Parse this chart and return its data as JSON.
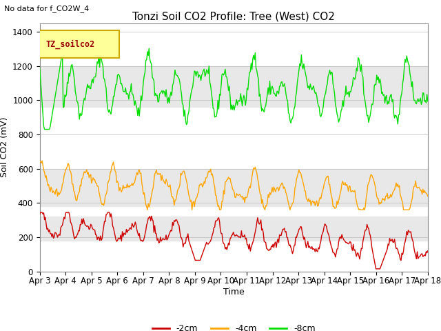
{
  "title": "Tonzi Soil CO2 Profile: Tree (West) CO2",
  "no_data_label": "No data for f_CO2W_4",
  "legend_label": "TZ_soilco2",
  "ylabel": "Soil CO2 (mV)",
  "xlabel": "Time",
  "ylim": [
    0,
    1450
  ],
  "yticks": [
    0,
    200,
    400,
    600,
    800,
    1000,
    1200,
    1400
  ],
  "series": {
    "-2cm": {
      "color": "#cc0000",
      "label": "-2cm"
    },
    "-4cm": {
      "color": "#ffa500",
      "label": "-4cm"
    },
    "-8cm": {
      "color": "#00dd00",
      "label": "-8cm"
    }
  },
  "band_ranges": [
    [
      180,
      320
    ],
    [
      380,
      600
    ],
    [
      960,
      1200
    ]
  ],
  "band_color": "#e8e8e8",
  "background_color": "#ffffff",
  "legend_box_color": "#ffff99",
  "legend_box_edge": "#ccaa00",
  "title_fontsize": 11,
  "axis_fontsize": 9,
  "tick_fontsize": 8.5
}
